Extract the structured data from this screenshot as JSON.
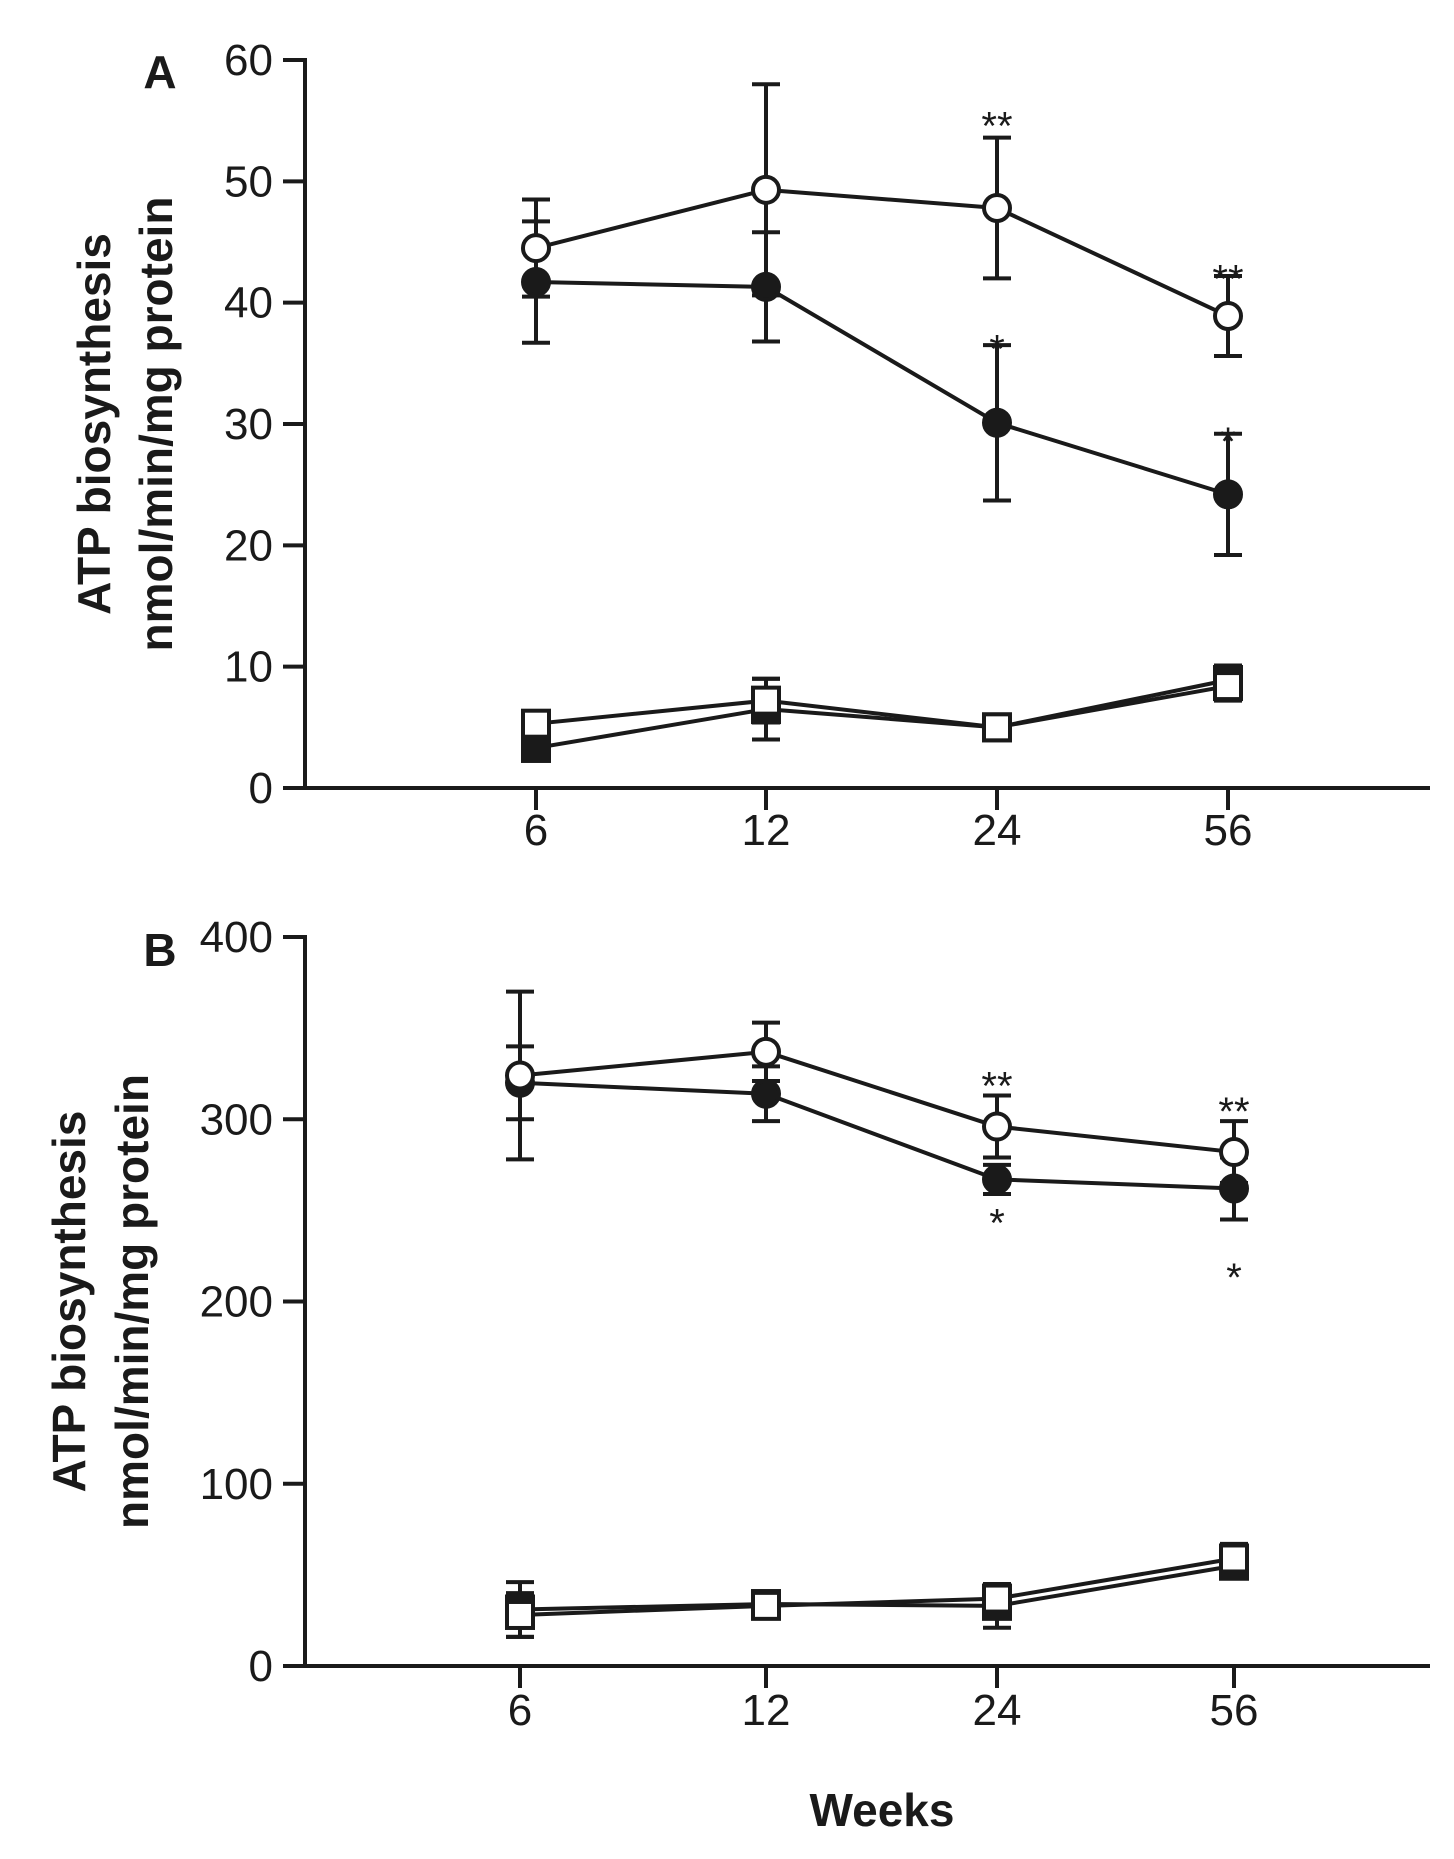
{
  "chart_data": [
    {
      "panel_label": "A",
      "type": "line",
      "ylabel_line1": "ATP biosynthesis",
      "ylabel_line2": "nmol/min/mg protein",
      "xlabel": "",
      "ylim": [
        0,
        60
      ],
      "yticks": [
        0,
        10,
        20,
        30,
        40,
        50,
        60
      ],
      "categories": [
        "6",
        "12",
        "24",
        "56"
      ],
      "series": [
        {
          "name": "open-circle",
          "marker": "circle-open",
          "values": [
            44.5,
            49.3,
            47.8,
            38.9
          ],
          "errors": [
            4.0,
            8.7,
            5.8,
            3.3
          ]
        },
        {
          "name": "filled-circle",
          "marker": "circle-filled",
          "values": [
            41.7,
            41.3,
            30.1,
            24.2
          ],
          "errors": [
            5.0,
            4.5,
            6.4,
            5.0
          ]
        },
        {
          "name": "open-square",
          "marker": "square-open",
          "values": [
            5.3,
            7.2,
            5.0,
            8.4
          ],
          "errors": [
            0.6,
            1.8,
            0.5,
            1.2
          ]
        },
        {
          "name": "filled-square",
          "marker": "square-filled",
          "values": [
            3.3,
            6.5,
            5.0,
            8.9
          ],
          "errors": [
            0.6,
            2.5,
            0.5,
            1.2
          ]
        }
      ],
      "annotations": [
        {
          "text": "**",
          "category": "24",
          "value": 55.6
        },
        {
          "text": "**",
          "category": "56",
          "value": 43.0
        },
        {
          "text": "*",
          "category": "24",
          "value": 37.2
        },
        {
          "text": "*",
          "category": "56",
          "value": 29.6
        }
      ]
    },
    {
      "panel_label": "B",
      "type": "line",
      "ylabel_line1": "ATP biosynthesis",
      "ylabel_line2": "nmol/min/mg protein",
      "xlabel": "Weeks",
      "ylim": [
        0,
        400
      ],
      "yticks": [
        0,
        100,
        200,
        300,
        400
      ],
      "categories": [
        "6",
        "12",
        "24",
        "56"
      ],
      "series": [
        {
          "name": "open-circle",
          "marker": "circle-open",
          "values": [
            324,
            337,
            296,
            282
          ],
          "errors": [
            46,
            16,
            17,
            17
          ]
        },
        {
          "name": "filled-circle",
          "marker": "circle-filled",
          "values": [
            320,
            314,
            267,
            262
          ],
          "errors": [
            20,
            15,
            8,
            17
          ]
        },
        {
          "name": "open-square",
          "marker": "square-open",
          "values": [
            28,
            33,
            37,
            59
          ],
          "errors": [
            12,
            5,
            6,
            8
          ]
        },
        {
          "name": "filled-square",
          "marker": "square-filled",
          "values": [
            31,
            34,
            33,
            55
          ],
          "errors": [
            15,
            6,
            12,
            6
          ]
        }
      ],
      "annotations": [
        {
          "text": "**",
          "category": "24",
          "value": 325
        },
        {
          "text": "**",
          "category": "56",
          "value": 311
        },
        {
          "text": "*",
          "category": "24",
          "value": 250
        },
        {
          "text": "*",
          "category": "56",
          "value": 220
        }
      ]
    }
  ]
}
